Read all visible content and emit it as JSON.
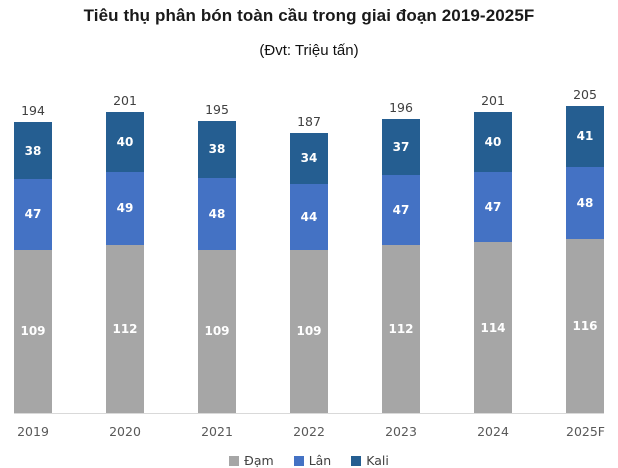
{
  "title": "Tiêu thụ phân bón toàn cầu trong giai đoạn 2019-2025F",
  "subtitle": "(Đvt: Triệu tấn)",
  "chart_data": {
    "type": "bar",
    "stacked": true,
    "title": "Tiêu thụ phân bón toàn cầu trong giai đoạn 2019-2025F",
    "unit": "Triệu tấn",
    "categories": [
      "2019",
      "2020",
      "2021",
      "2022",
      "2023",
      "2024",
      "2025F"
    ],
    "series": [
      {
        "name": "Đạm",
        "color": "#a6a6a6",
        "values": [
          109,
          112,
          109,
          109,
          112,
          114,
          116
        ]
      },
      {
        "name": "Lân",
        "color": "#4472c4",
        "values": [
          47,
          49,
          48,
          44,
          47,
          47,
          48
        ]
      },
      {
        "name": "Kali",
        "color": "#255e91",
        "values": [
          38,
          40,
          38,
          34,
          37,
          40,
          41
        ]
      }
    ],
    "totals": [
      194,
      201,
      195,
      187,
      196,
      201,
      205
    ],
    "ylim": [
      0,
      210
    ],
    "grid": false,
    "legend_position": "bottom",
    "value_label_color": "#ffffff",
    "total_label_color": "#404040",
    "axis_label_color": "#595959",
    "axis_line_color": "#d9d9d9"
  }
}
